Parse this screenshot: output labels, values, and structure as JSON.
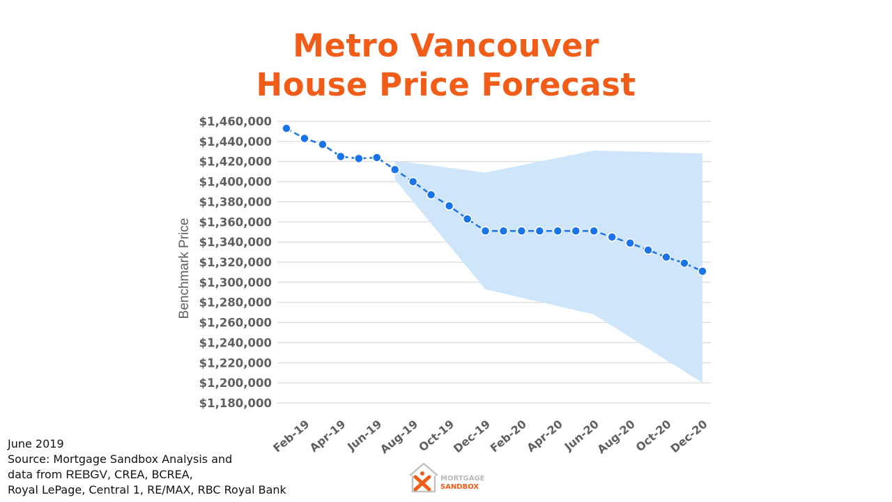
{
  "title": {
    "line1": "Metro Vancouver",
    "line2": "House Price Forecast"
  },
  "colors": {
    "title": "#f25c19",
    "line": "#1a73e8",
    "band": "#cfe5fa",
    "grid": "#dcdcdc",
    "axis_text": "#5f5f5f"
  },
  "chart_data": {
    "type": "line",
    "ylabel": "Benchmark Price",
    "xlabel": "",
    "ylim": [
      1180000,
      1460000
    ],
    "y_ticks": [
      "$1,460,000",
      "$1,440,000",
      "$1,420,000",
      "$1,400,000",
      "$1,380,000",
      "$1,360,000",
      "$1,340,000",
      "$1,320,000",
      "$1,300,000",
      "$1,280,000",
      "$1,260,000",
      "$1,240,000",
      "$1,220,000",
      "$1,200,000",
      "$1,180,000"
    ],
    "x_tick_labels": [
      "Feb-19",
      "Apr-19",
      "Jun-19",
      "Aug-19",
      "Oct-19",
      "Dec-19",
      "Feb-20",
      "Apr-20",
      "Jun-20",
      "Aug-20",
      "Oct-20",
      "Dec-20"
    ],
    "x": [
      "Jan-19",
      "Feb-19",
      "Mar-19",
      "Apr-19",
      "May-19",
      "Jun-19",
      "Jul-19",
      "Aug-19",
      "Sep-19",
      "Oct-19",
      "Nov-19",
      "Dec-19",
      "Jan-20",
      "Feb-20",
      "Mar-20",
      "Apr-20",
      "May-20",
      "Jun-20",
      "Jul-20",
      "Aug-20",
      "Sep-20",
      "Oct-20",
      "Nov-20",
      "Dec-20"
    ],
    "series": [
      {
        "values": [
          1453000,
          1443000,
          1437000,
          1425000,
          1423000,
          1424000,
          1412000,
          1400000,
          1387000,
          1376000,
          1363000,
          1351000,
          1351000,
          1351000,
          1351000,
          1351000,
          1351000,
          1351000,
          1345000,
          1339000,
          1332000,
          1325000,
          1319000,
          1311000
        ]
      }
    ],
    "band": {
      "x": [
        "Jul-19",
        "Dec-19",
        "Jun-20",
        "Dec-20"
      ],
      "upper": [
        1421000,
        1409000,
        1431000,
        1428000
      ],
      "lower": [
        1402000,
        1293000,
        1268000,
        1200000
      ]
    },
    "grid": true,
    "legend": "none"
  },
  "footnote": {
    "line1": "June 2019",
    "line2": "Source: Mortgage Sandbox Analysis and",
    "line3_pre": "data from ",
    "line3_bold": "REBGV",
    "line3_post": ", CREA, BCREA,",
    "line4": "Royal LePage, Central 1, RE/MAX, RBC Royal Bank"
  },
  "logo": {
    "line1": "MORTGAGE",
    "line2": "SANDBOX",
    "icon": "house-x-logo-icon"
  }
}
